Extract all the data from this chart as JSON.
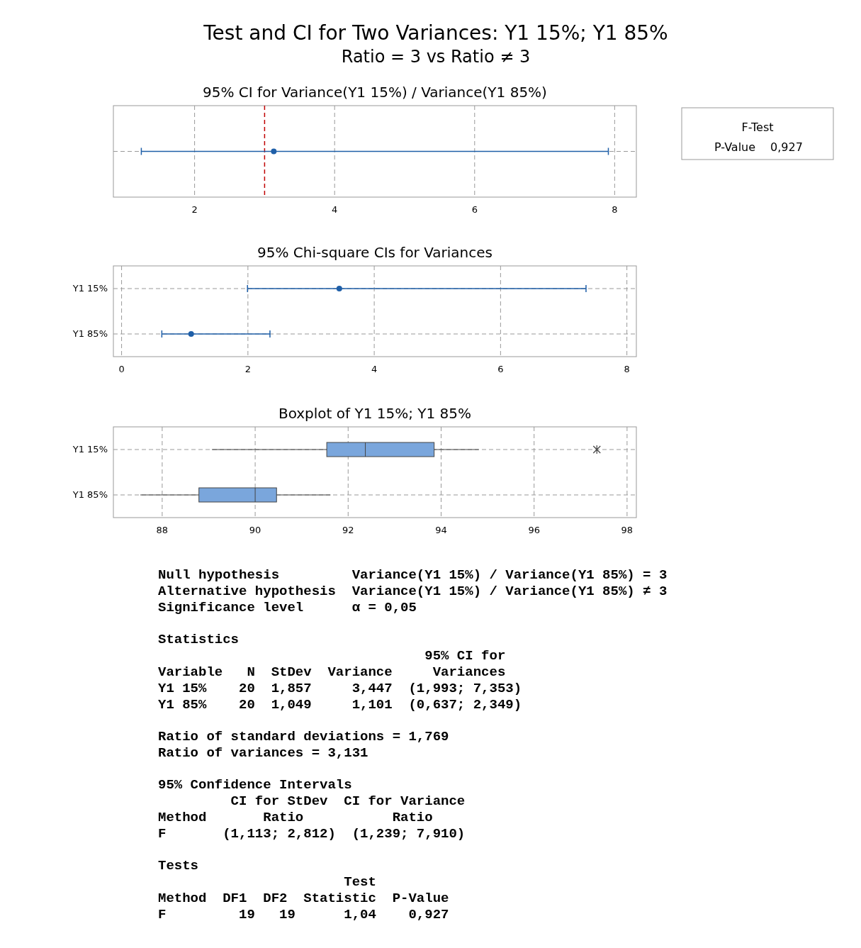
{
  "chart_data": [
    {
      "type": "other",
      "title": "Test and CI for Two Variances: Y1 15%; Y1 85%",
      "subtitle": "Ratio = 3 vs Ratio ≠ 3"
    },
    {
      "type": "scatter",
      "title": "95% CI for Variance(Y1 15%) / Variance(Y1 85%)",
      "orientation": "horizontal",
      "categories": [
        null
      ],
      "xlim": [
        0.84,
        8.31
      ],
      "xticks": [
        2,
        4,
        6,
        8
      ],
      "grid": true,
      "marker": "circle",
      "series": [
        {
          "color": "#1f5fa8",
          "values": [
            3.131
          ],
          "errors": [
            [
              1.239,
              7.91
            ]
          ]
        }
      ],
      "ref_lines": [
        {
          "axis": "x",
          "value": 3,
          "color": "#c00000",
          "line_style": "dashed"
        }
      ]
    },
    {
      "type": "other",
      "title": "F-Test",
      "annotations": [
        "P-Value",
        "0,927"
      ]
    },
    {
      "type": "scatter",
      "title": "95% Chi-square CIs for Variances",
      "orientation": "horizontal",
      "categories": [
        "Y1 15%",
        "Y1 85%"
      ],
      "xlim": [
        -0.13,
        8.15
      ],
      "xticks": [
        0,
        2,
        4,
        6,
        8
      ],
      "grid": true,
      "marker": "circle",
      "series": [
        {
          "color": "#1f5fa8",
          "values": [
            3.447,
            1.101
          ],
          "errors": [
            [
              1.993,
              7.353
            ],
            [
              0.637,
              2.349
            ]
          ]
        }
      ]
    },
    {
      "type": "box",
      "title": "Boxplot of Y1 15%; Y1 85%",
      "orientation": "horizontal",
      "categories": [
        "Y1 15%",
        "Y1 85%"
      ],
      "xlim": [
        86.95,
        98.2
      ],
      "xticks": [
        88,
        90,
        92,
        94,
        96,
        98
      ],
      "grid": true,
      "series": [
        {
          "color": "#7aa6dc",
          "boxes": [
            {
              "low": 89.07,
              "q1": 91.54,
              "median": 92.37,
              "q3": 93.85,
              "high": 94.81,
              "outliers": [
                97.35
              ]
            },
            {
              "low": 87.53,
              "q1": 88.79,
              "median": 90.0,
              "q3": 90.46,
              "high": 91.62
            }
          ]
        }
      ]
    },
    {
      "type": "other",
      "annotations": [
        "Null hypothesis         Variance(Y1 15%) / Variance(Y1 85%) = 3",
        "Alternative hypothesis  Variance(Y1 15%) / Variance(Y1 85%) ≠ 3",
        "Significance level      α = 0,05",
        "Statistics",
        "                                 95% CI for",
        "Variable   N  StDev  Variance     Variances",
        "Y1 15%    20  1,857     3,447  (1,993; 7,353)",
        "Y1 85%    20  1,049     1,101  (0,637; 2,349)",
        "Ratio of standard deviations = 1,769",
        "Ratio of variances = 3,131",
        "95% Confidence Intervals",
        "         CI for StDev  CI for Variance",
        "Method       Ratio           Ratio",
        "F       (1,113; 2,812)  (1,239; 7,910)",
        "Tests",
        "                       Test",
        "Method  DF1  DF2  Statistic  P-Value",
        "F         19   19      1,04    0,927"
      ]
    }
  ]
}
